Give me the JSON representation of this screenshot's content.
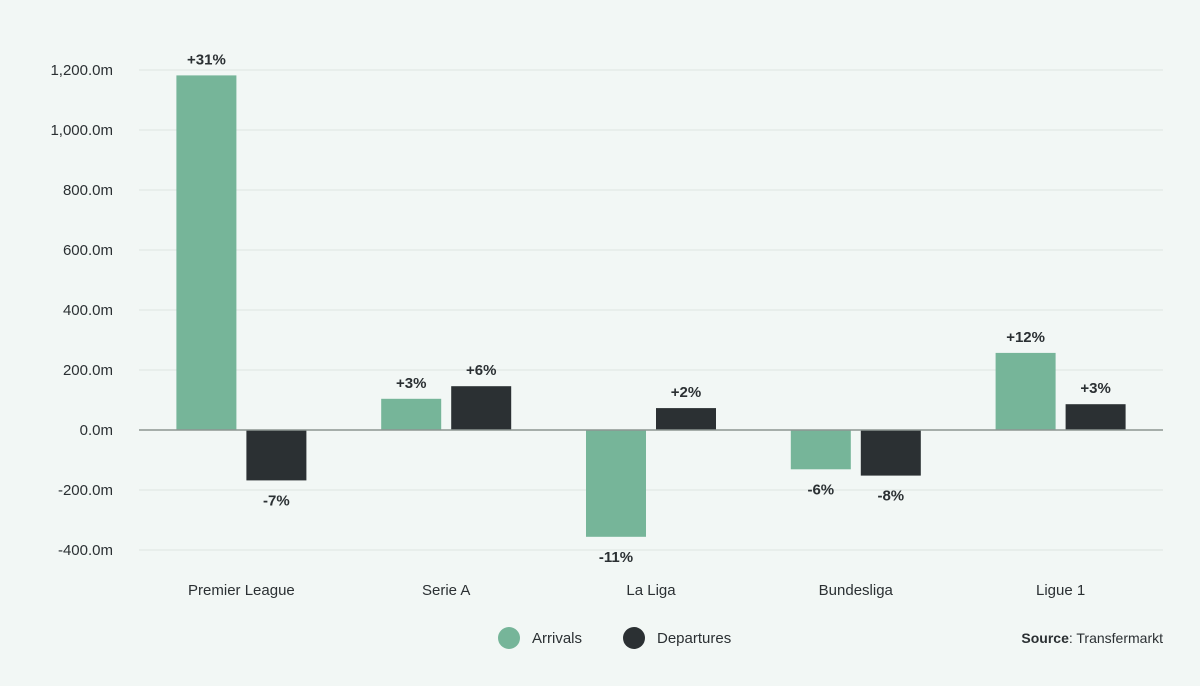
{
  "chart_data": {
    "type": "bar",
    "categories": [
      "Premier League",
      "Serie A",
      "La Liga",
      "Bundesliga",
      "Ligue 1"
    ],
    "series": [
      {
        "name": "Arrivals",
        "color": "#76b599",
        "values": [
          1182,
          104,
          -356,
          -131,
          257
        ],
        "labels": [
          "+31%",
          "+3%",
          "-11%",
          "-6%",
          "+12%"
        ]
      },
      {
        "name": "Departures",
        "color": "#2b3033",
        "values": [
          -168,
          146,
          73,
          -152,
          86
        ],
        "labels": [
          "-7%",
          "+6%",
          "+2%",
          "-8%",
          "+3%"
        ]
      }
    ],
    "ylim": [
      -400,
      1200
    ],
    "yticks": [
      -400,
      -200,
      0,
      200,
      400,
      600,
      800,
      1000,
      1200
    ],
    "ytick_labels": [
      "-400.0m",
      "-200.0m",
      "0.0m",
      "200.0m",
      "400.0m",
      "600.0m",
      "800.0m",
      "1,000.0m",
      "1,200.0m"
    ],
    "grid": true,
    "legend": "bottom-center",
    "title": "",
    "xlabel": "",
    "ylabel": ""
  },
  "source": {
    "label": "Source",
    "text": ": Transfermarkt"
  }
}
